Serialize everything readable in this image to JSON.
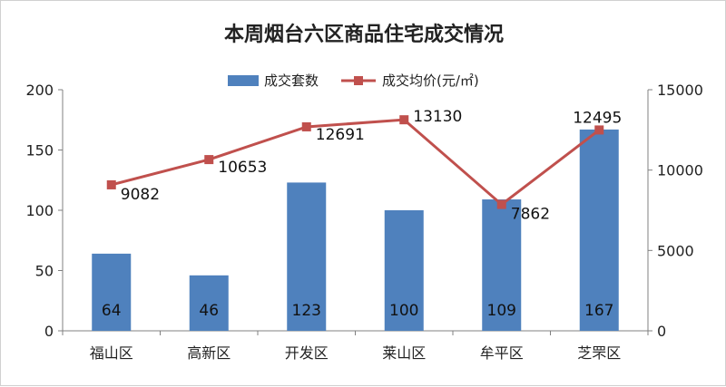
{
  "chart_data": {
    "type": "bar+line",
    "title": "本周烟台六区商品住宅成交情况",
    "categories": [
      "福山区",
      "高新区",
      "开发区",
      "莱山区",
      "牟平区",
      "芝罘区"
    ],
    "series": [
      {
        "name": "成交套数",
        "type": "bar",
        "axis": "left",
        "color": "#4f81bd",
        "values": [
          64,
          46,
          123,
          100,
          109,
          167
        ],
        "labels": [
          "64",
          "46",
          "123",
          "100",
          "109",
          "167"
        ]
      },
      {
        "name": "成交均价(元/㎡)",
        "type": "line",
        "axis": "right",
        "color": "#c0504d",
        "values": [
          9082,
          10653,
          12691,
          13130,
          7862,
          12495
        ],
        "labels": [
          "9082",
          "10653",
          "12691",
          "13130",
          "7862",
          "12495"
        ]
      }
    ],
    "y_left": {
      "min": 0,
      "max": 200,
      "ticks": [
        "0",
        "50",
        "100",
        "150",
        "200"
      ]
    },
    "y_right": {
      "min": 0,
      "max": 15000,
      "ticks": [
        "0",
        "5000",
        "10000",
        "15000"
      ]
    },
    "legend_position": "top",
    "grid": false
  }
}
